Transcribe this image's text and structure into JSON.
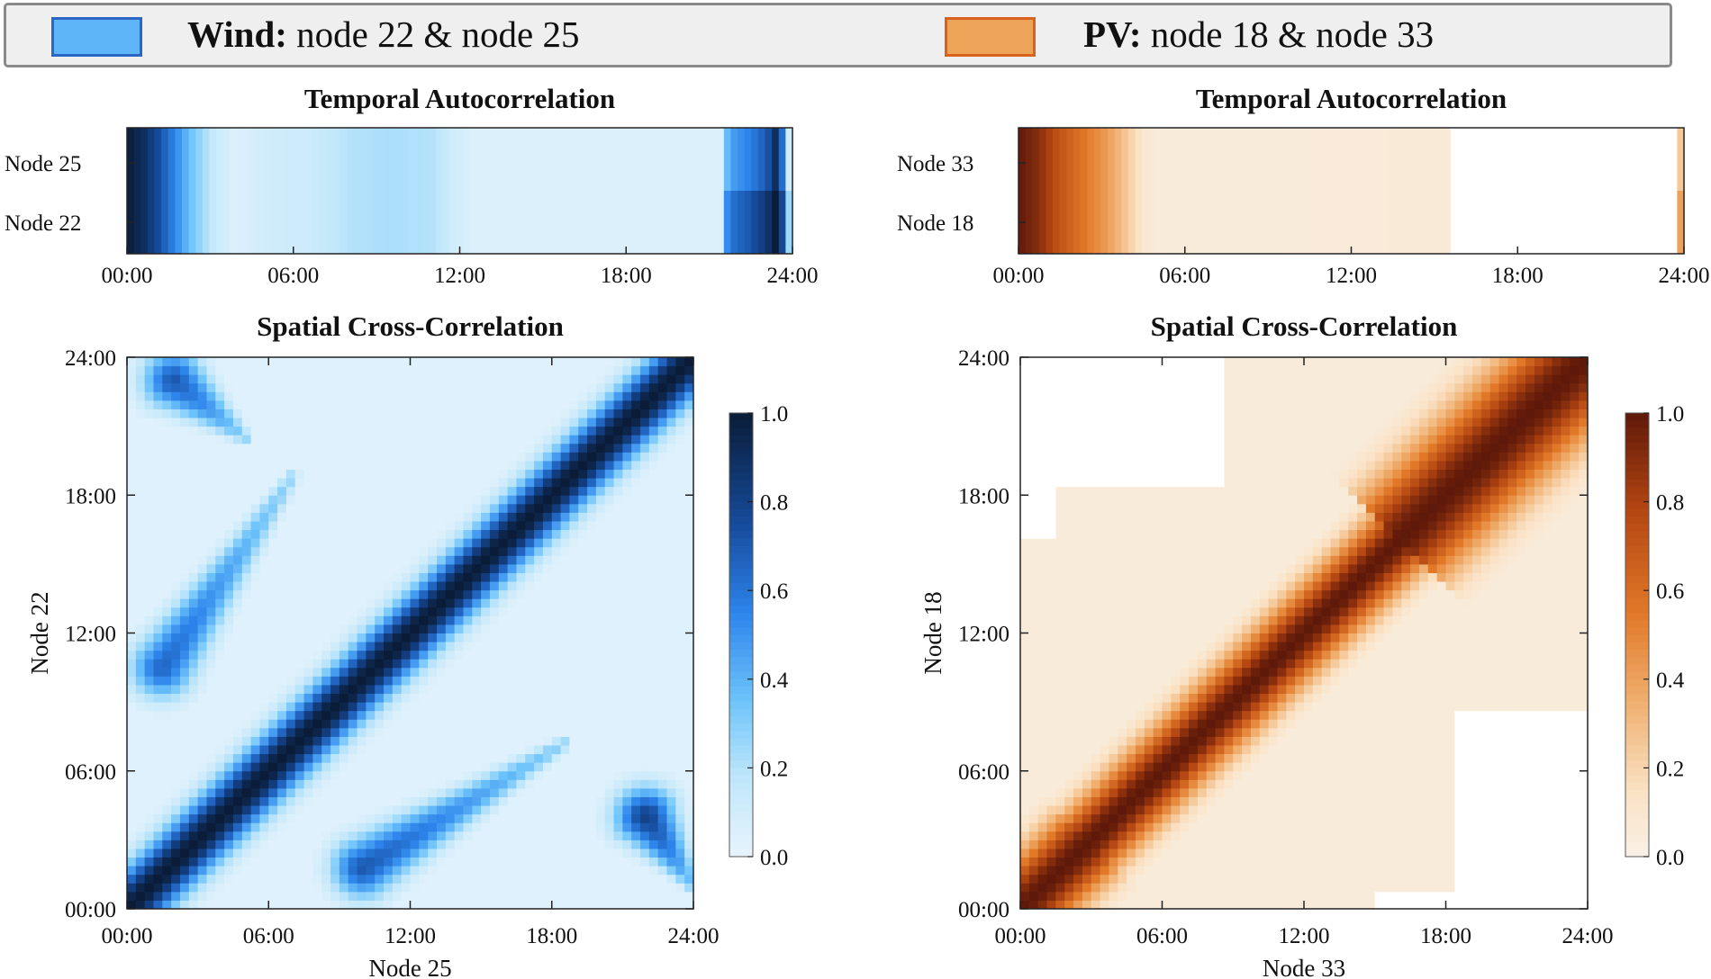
{
  "legend": [
    {
      "key": "wind",
      "bold": "Wind:",
      "text": " node 22 & node 25",
      "fill": "#5eb6f8",
      "border": "#2a66c4"
    },
    {
      "key": "pv",
      "bold": "PV:",
      "text": " node 18 & node 33",
      "fill": "#eda459",
      "border": "#d9631c"
    }
  ],
  "chart_data": [
    {
      "type": "heatmap",
      "id": "wind_temporal",
      "title": "Temporal Autocorrelation",
      "rows": [
        "Node 25",
        "Node 22"
      ],
      "x_ticks": [
        "00:00",
        "06:00",
        "12:00",
        "18:00",
        "24:00"
      ],
      "x_range": [
        0,
        24
      ],
      "colormap": "Blues",
      "profile": [
        [
          0,
          0.98
        ],
        [
          0.5,
          0.9
        ],
        [
          1,
          0.75
        ],
        [
          1.6,
          0.55
        ],
        [
          2.2,
          0.35
        ],
        [
          3,
          0.15
        ],
        [
          3.8,
          0.05
        ],
        [
          5,
          0.1
        ],
        [
          6.5,
          0.12
        ],
        [
          8,
          0.2
        ],
        [
          9.5,
          0.22
        ],
        [
          11,
          0.2
        ],
        [
          11.8,
          0.1
        ],
        [
          12.5,
          0.05
        ],
        [
          21.5,
          0.05
        ],
        [
          21.8,
          0.5
        ],
        [
          22.5,
          0.6
        ],
        [
          23.2,
          0.75
        ],
        [
          23.5,
          0.95
        ],
        [
          23.7,
          0.8
        ],
        [
          23.9,
          0.3
        ],
        [
          24,
          0.15
        ]
      ]
    },
    {
      "type": "heatmap",
      "id": "wind_spatial",
      "title": "Spatial Cross-Correlation",
      "xlabel": "Node 25",
      "ylabel": "Node 22",
      "x_ticks": [
        "00:00",
        "06:00",
        "12:00",
        "18:00",
        "24:00"
      ],
      "y_ticks": [
        "00:00",
        "06:00",
        "12:00",
        "18:00",
        "24:00"
      ],
      "x_range": [
        0,
        24
      ],
      "y_range": [
        0,
        24
      ],
      "colormap": "Blues",
      "colorbar_ticks": [
        "1.0",
        "0.8",
        "0.6",
        "0.4",
        "0.2",
        "0.0"
      ],
      "colorbar_range": [
        0,
        1
      ],
      "diagonal_width_hours": 2.2,
      "off_diagonal_features": [
        {
          "x0": 1.5,
          "y0": 10.5,
          "x1": 7,
          "y1": 18.8,
          "peak": 0.65
        },
        {
          "x0": 10,
          "y0": 1.8,
          "x1": 18.5,
          "y1": 7.2,
          "peak": 0.7
        },
        {
          "x0": 2,
          "y0": 23,
          "x1": 5,
          "y1": 20.5,
          "peak": 0.7
        },
        {
          "x0": 22,
          "y0": 4,
          "x1": 24,
          "y1": 1,
          "peak": 0.8
        }
      ]
    },
    {
      "type": "heatmap",
      "id": "pv_temporal",
      "title": "Temporal Autocorrelation",
      "rows": [
        "Node 33",
        "Node 18"
      ],
      "x_ticks": [
        "00:00",
        "06:00",
        "12:00",
        "18:00",
        "24:00"
      ],
      "x_range": [
        0,
        24
      ],
      "colormap": "Oranges",
      "profile": [
        [
          0,
          0.98
        ],
        [
          0.6,
          0.9
        ],
        [
          1.2,
          0.75
        ],
        [
          2,
          0.6
        ],
        [
          2.6,
          0.5
        ],
        [
          3.2,
          0.4
        ],
        [
          3.8,
          0.25
        ],
        [
          4.5,
          0.08
        ],
        [
          5,
          0.05
        ],
        [
          15.5,
          0.06
        ],
        [
          15.6,
          -1
        ],
        [
          23.8,
          -1
        ],
        [
          23.9,
          0.3
        ],
        [
          24,
          0.3
        ]
      ]
    },
    {
      "type": "heatmap",
      "id": "pv_spatial",
      "title": "Spatial Cross-Correlation",
      "xlabel": "Node 33",
      "ylabel": "Node 18",
      "x_ticks": [
        "00:00",
        "06:00",
        "12:00",
        "18:00",
        "24:00"
      ],
      "y_ticks": [
        "00:00",
        "06:00",
        "12:00",
        "18:00",
        "24:00"
      ],
      "x_range": [
        0,
        24
      ],
      "y_range": [
        0,
        24
      ],
      "colormap": "Oranges",
      "colorbar_ticks": [
        "1.0",
        "0.8",
        "0.6",
        "0.4",
        "0.2",
        "0.0"
      ],
      "colorbar_range": [
        0,
        1
      ],
      "diagonal_width_hours": 2.6,
      "white_regions": [
        {
          "x": [
            0,
            8.5
          ],
          "y": [
            18.3,
            24
          ]
        },
        {
          "x": [
            18.5,
            24
          ],
          "y": [
            0,
            8.5
          ]
        },
        {
          "x": [
            0,
            1.5
          ],
          "y": [
            16,
            18.3
          ]
        },
        {
          "x": [
            15,
            18.5
          ],
          "y": [
            0,
            0.8
          ]
        }
      ],
      "bright_band": {
        "center_hour": 20,
        "half_width_hours": 4
      }
    }
  ]
}
